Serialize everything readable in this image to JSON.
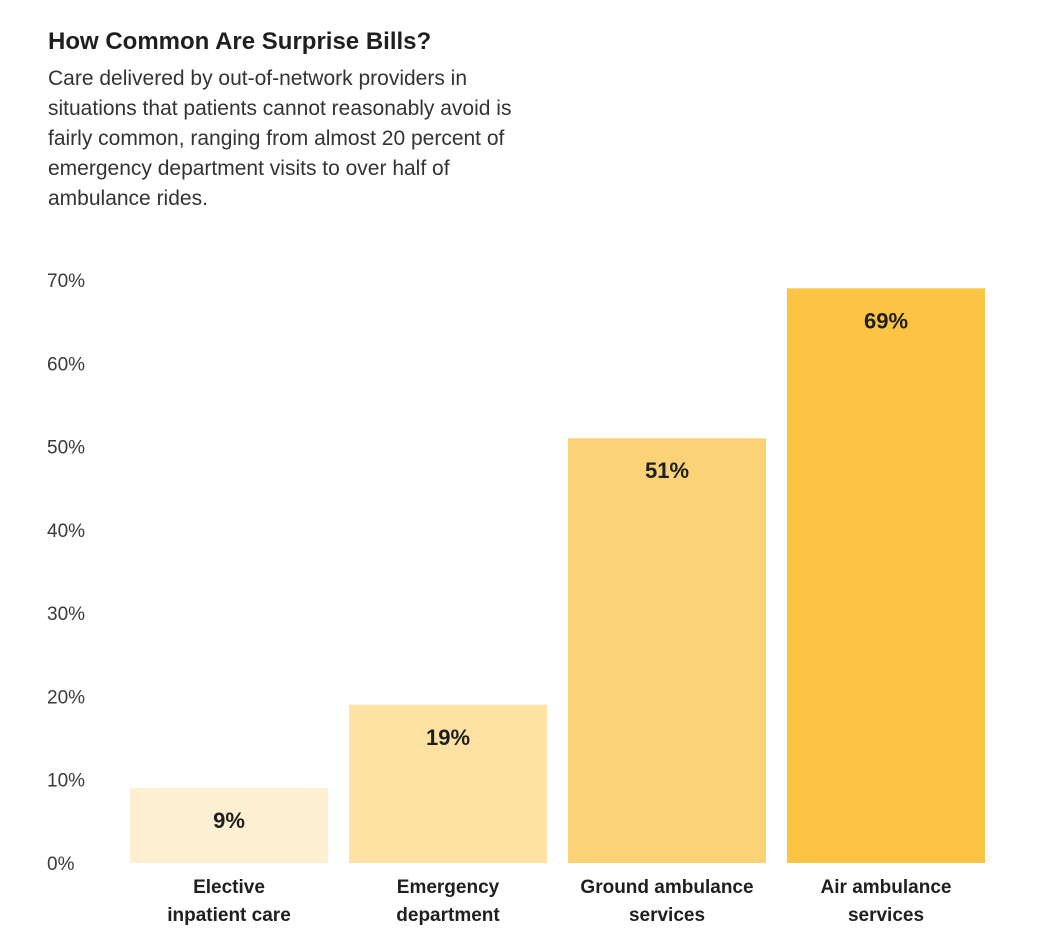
{
  "chart_data": {
    "type": "bar",
    "title": "How Common Are Surprise Bills?",
    "subtitle": "Care delivered by out-of-network providers in situations that patients cannot reasonably avoid is fairly common, ranging from almost 20 percent of emergency department visits to over half of ambulance rides.",
    "categories": [
      [
        "Elective",
        "inpatient care"
      ],
      [
        "Emergency",
        "department"
      ],
      [
        "Ground ambulance",
        "services"
      ],
      [
        "Air ambulance",
        "services"
      ]
    ],
    "values": [
      9,
      19,
      51,
      69
    ],
    "value_labels": [
      "9%",
      "19%",
      "51%",
      "69%"
    ],
    "colors": [
      "#fdf0d2",
      "#fde2a3",
      "#fcd277",
      "#fcc443"
    ],
    "ylim": [
      0,
      70
    ],
    "yticks": [
      0,
      10,
      20,
      30,
      40,
      50,
      60,
      70
    ],
    "ytick_labels": [
      "0%",
      "10%",
      "20%",
      "30%",
      "40%",
      "50%",
      "60%",
      "70%"
    ],
    "xlabel": "",
    "ylabel": "",
    "grid": false,
    "legend": "none"
  }
}
